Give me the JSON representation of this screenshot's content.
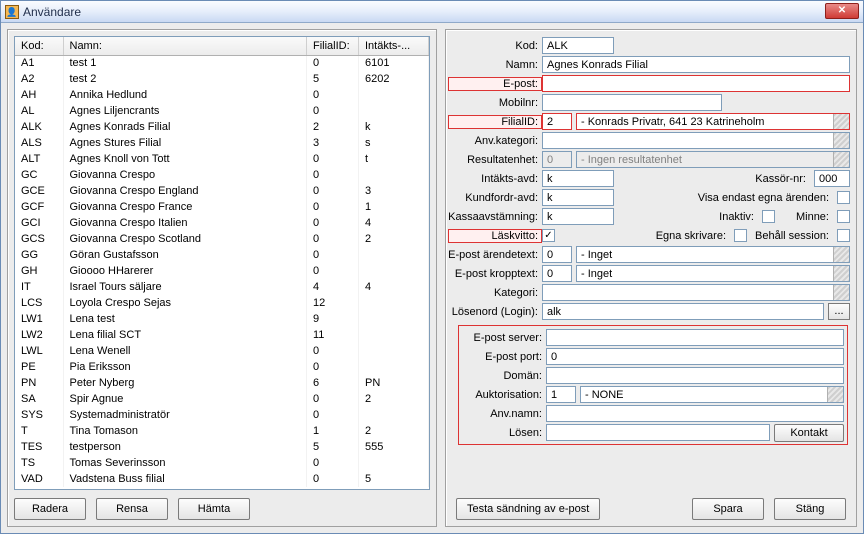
{
  "window": {
    "title": "Användare"
  },
  "table": {
    "columns": [
      "Kod:",
      "Namn:",
      "FilialID:",
      "Intäkts-..."
    ],
    "rows": [
      [
        "A1",
        "test 1",
        "0",
        "6101"
      ],
      [
        "A2",
        "test 2",
        "5",
        "6202"
      ],
      [
        "AH",
        "Annika Hedlund",
        "0",
        ""
      ],
      [
        "AL",
        "Agnes Liljencrants",
        "0",
        ""
      ],
      [
        "ALK",
        "Agnes Konrads Filial",
        "2",
        "k"
      ],
      [
        "ALS",
        "Agnes Stures Filial",
        "3",
        "s"
      ],
      [
        "ALT",
        "Agnes Knoll von Tott",
        "0",
        "t"
      ],
      [
        "GC",
        "Giovanna Crespo",
        "0",
        ""
      ],
      [
        "GCE",
        "Giovanna Crespo England",
        "0",
        "3"
      ],
      [
        "GCF",
        "Giovanna Crespo France",
        "0",
        "1"
      ],
      [
        "GCI",
        "Giovanna Crespo Italien",
        "0",
        "4"
      ],
      [
        "GCS",
        "Giovanna Crespo Scotland",
        "0",
        "2"
      ],
      [
        "GG",
        "Göran Gustafsson",
        "0",
        ""
      ],
      [
        "GH",
        "Gioooo HHarerer",
        "0",
        ""
      ],
      [
        "IT",
        "Israel Tours säljare",
        "4",
        "4"
      ],
      [
        "LCS",
        "Loyola Crespo Sejas",
        "12",
        ""
      ],
      [
        "LW1",
        "Lena test",
        "9",
        ""
      ],
      [
        "LW2",
        "Lena filial SCT",
        "11",
        ""
      ],
      [
        "LWL",
        "Lena Wenell",
        "0",
        ""
      ],
      [
        "PE",
        "Pia Eriksson",
        "0",
        ""
      ],
      [
        "PN",
        "Peter Nyberg",
        "6",
        "PN"
      ],
      [
        "SA",
        "Spir Agnue",
        "0",
        "2"
      ],
      [
        "SYS",
        "Systemadministratör",
        "0",
        ""
      ],
      [
        "T",
        "Tina Tomason",
        "1",
        "2"
      ],
      [
        "TES",
        "testperson",
        "5",
        "555"
      ],
      [
        "TS",
        "Tomas Severinsson",
        "0",
        ""
      ],
      [
        "VAD",
        "Vadstena Buss filial",
        "0",
        "5"
      ]
    ]
  },
  "left_buttons": {
    "radera": "Radera",
    "rensa": "Rensa",
    "hamta": "Hämta"
  },
  "labels": {
    "kod": "Kod:",
    "namn": "Namn:",
    "epost": "E-post:",
    "mobilnr": "Mobilnr:",
    "filialid": "FilialID:",
    "anvkat": "Anv.kategori:",
    "resultat": "Resultatenhet:",
    "intakts": "Intäkts-avd:",
    "kassornr": "Kassör-nr:",
    "kundfordr": "Kundfordr-avd:",
    "visaend": "Visa endast egna ärenden:",
    "kassaav": "Kassaavstämning:",
    "inaktiv": "Inaktiv:",
    "minne": "Minne:",
    "laskvitto": "Läskvitto:",
    "egnaskr": "Egna skrivare:",
    "behall": "Behåll session:",
    "eparende": "E-post ärendetext:",
    "epkropp": "E-post kropptext:",
    "kategori": "Kategori:",
    "losenord": "Lösenord (Login):",
    "epserver": "E-post server:",
    "epport": "E-post port:",
    "doman": "Domän:",
    "auktor": "Auktorisation:",
    "anvnamn": "Anv.namn:",
    "losen": "Lösen:",
    "kontakt": "Kontakt"
  },
  "form": {
    "kod": "ALK",
    "namn": "Agnes Konrads Filial",
    "epost": "",
    "mobilnr": "",
    "filialid_code": "2",
    "filialid_text": "  - Konrads Privatr, 641 23 Katrineholm",
    "anvkat": "",
    "resultat_code": "0",
    "resultat_text": "  - Ingen resultatenhet",
    "intakts": "k",
    "kassornr": "000",
    "kundfordr": "k",
    "visa_endast": false,
    "kassaav": "k",
    "inaktiv": false,
    "minne": false,
    "laskvitto": true,
    "egnaskr": false,
    "behall": false,
    "eparende_code": "0",
    "eparende_text": "  - Inget",
    "epkropp_code": "0",
    "epkropp_text": "  - Inget",
    "kategori": "",
    "losenord": "alk",
    "epserver": "",
    "epport": "0",
    "doman": "",
    "auktor_code": "1",
    "auktor_text": "  - NONE",
    "anvnamn": "",
    "losen": ""
  },
  "bottom_buttons": {
    "testa": "Testa sändning av e-post",
    "spara": "Spara",
    "stang": "Stäng"
  },
  "colors": {
    "accent_red": "#d33333",
    "border": "#7f9db9"
  }
}
